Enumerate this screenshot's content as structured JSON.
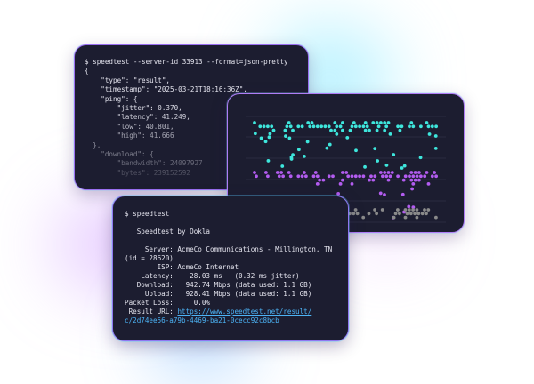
{
  "json_terminal": {
    "lines": [
      "$ speedtest --server-id 33913 --format=json-pretty",
      "{",
      "    \"type\": \"result\",",
      "    \"timestamp\": \"2025-03-21T18:16:36Z\",",
      "    \"ping\": {",
      "        \"jitter\": 0.370,",
      "        \"latency\": 41.249,",
      "        \"low\": 40.801,",
      "        \"high\": 41.666",
      "  },",
      "    \"download\": {",
      "        \"bandwidth\": 24097927",
      "        \"bytes\": 239152592"
    ]
  },
  "dot_plot": {
    "colors": {
      "series_1": "#3ee6dc",
      "series_2": "#b35cf0",
      "series_3": "#8a8a8a",
      "grid": "#2a2b40"
    }
  },
  "speedtest_terminal": {
    "lines": [
      "$ speedtest",
      "",
      "   Speedtest by Ookla",
      "",
      "     Server: AcmeCo Communications - Millington, TN",
      "(id = 28620)",
      "        ISP: AcmeCo Internet",
      "    Latency:    28.03 ms   (0.32 ms jitter)",
      "   Download:   942.74 Mbps (data used: 1.1 GB)",
      "     Upload:   928.41 Mbps (data used: 1.1 GB)",
      "Packet Loss:     0.0%"
    ],
    "result_label": " Result URL: ",
    "result_url_1": "https://www.speedtest.net/result/",
    "result_url_2": "c/2d74ee56-a79b-4469-ba21-0cecc92c8bcb"
  }
}
